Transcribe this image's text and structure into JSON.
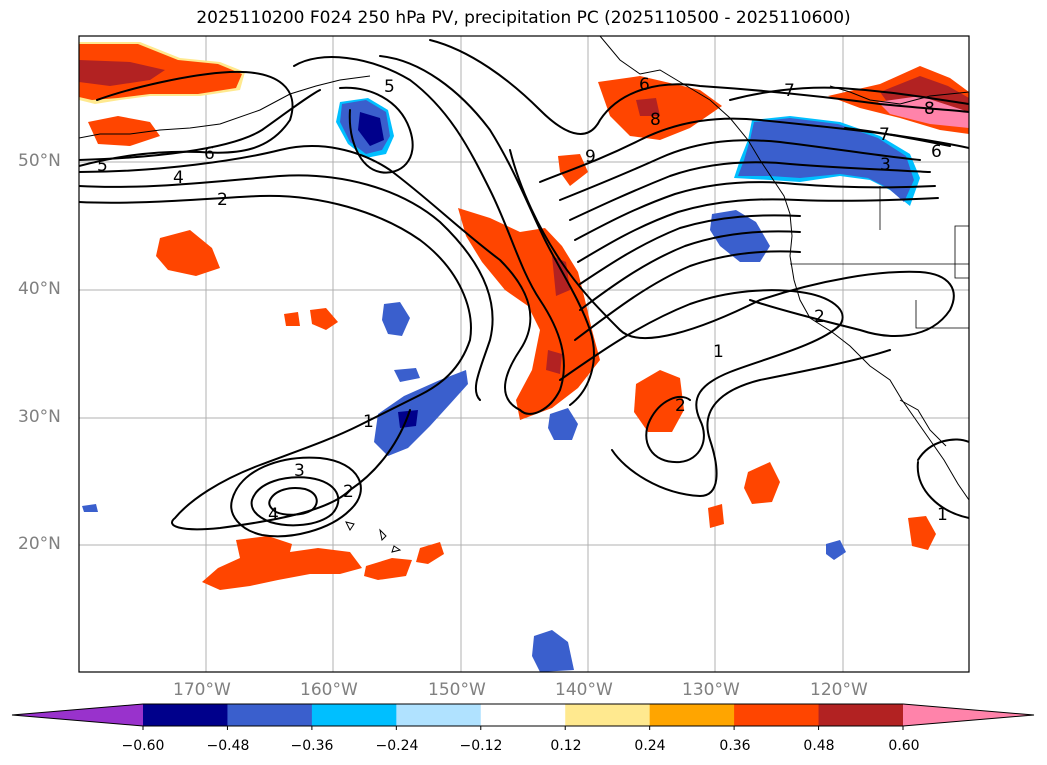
{
  "title": "2025110200 F024 250 hPa PV, precipitation PC (2025110500 - 2025110600)",
  "lat_labels": [
    "50°N",
    "40°N",
    "30°N",
    "20°N"
  ],
  "lon_labels": [
    "170°W",
    "160°W",
    "150°W",
    "140°W",
    "130°W",
    "120°W"
  ],
  "colorbar": {
    "ticks": [
      "−0.60",
      "−0.48",
      "−0.36",
      "−0.24",
      "−0.12",
      "0.12",
      "0.24",
      "0.36",
      "0.48",
      "0.60"
    ],
    "colors": [
      "#9932cc",
      "#00008b",
      "#3a5fcd",
      "#00bfff",
      "#b0e2ff",
      "#ffffff",
      "#ffe98f",
      "#ffa500",
      "#ff4500",
      "#b22222",
      "#ff83aa"
    ]
  },
  "contour_labels": [
    "5",
    "6",
    "4",
    "2",
    "5",
    "6",
    "8",
    "9",
    "7",
    "8",
    "7",
    "6",
    "3",
    "1",
    "2",
    "1",
    "2",
    "3",
    "2",
    "4",
    "1"
  ]
}
